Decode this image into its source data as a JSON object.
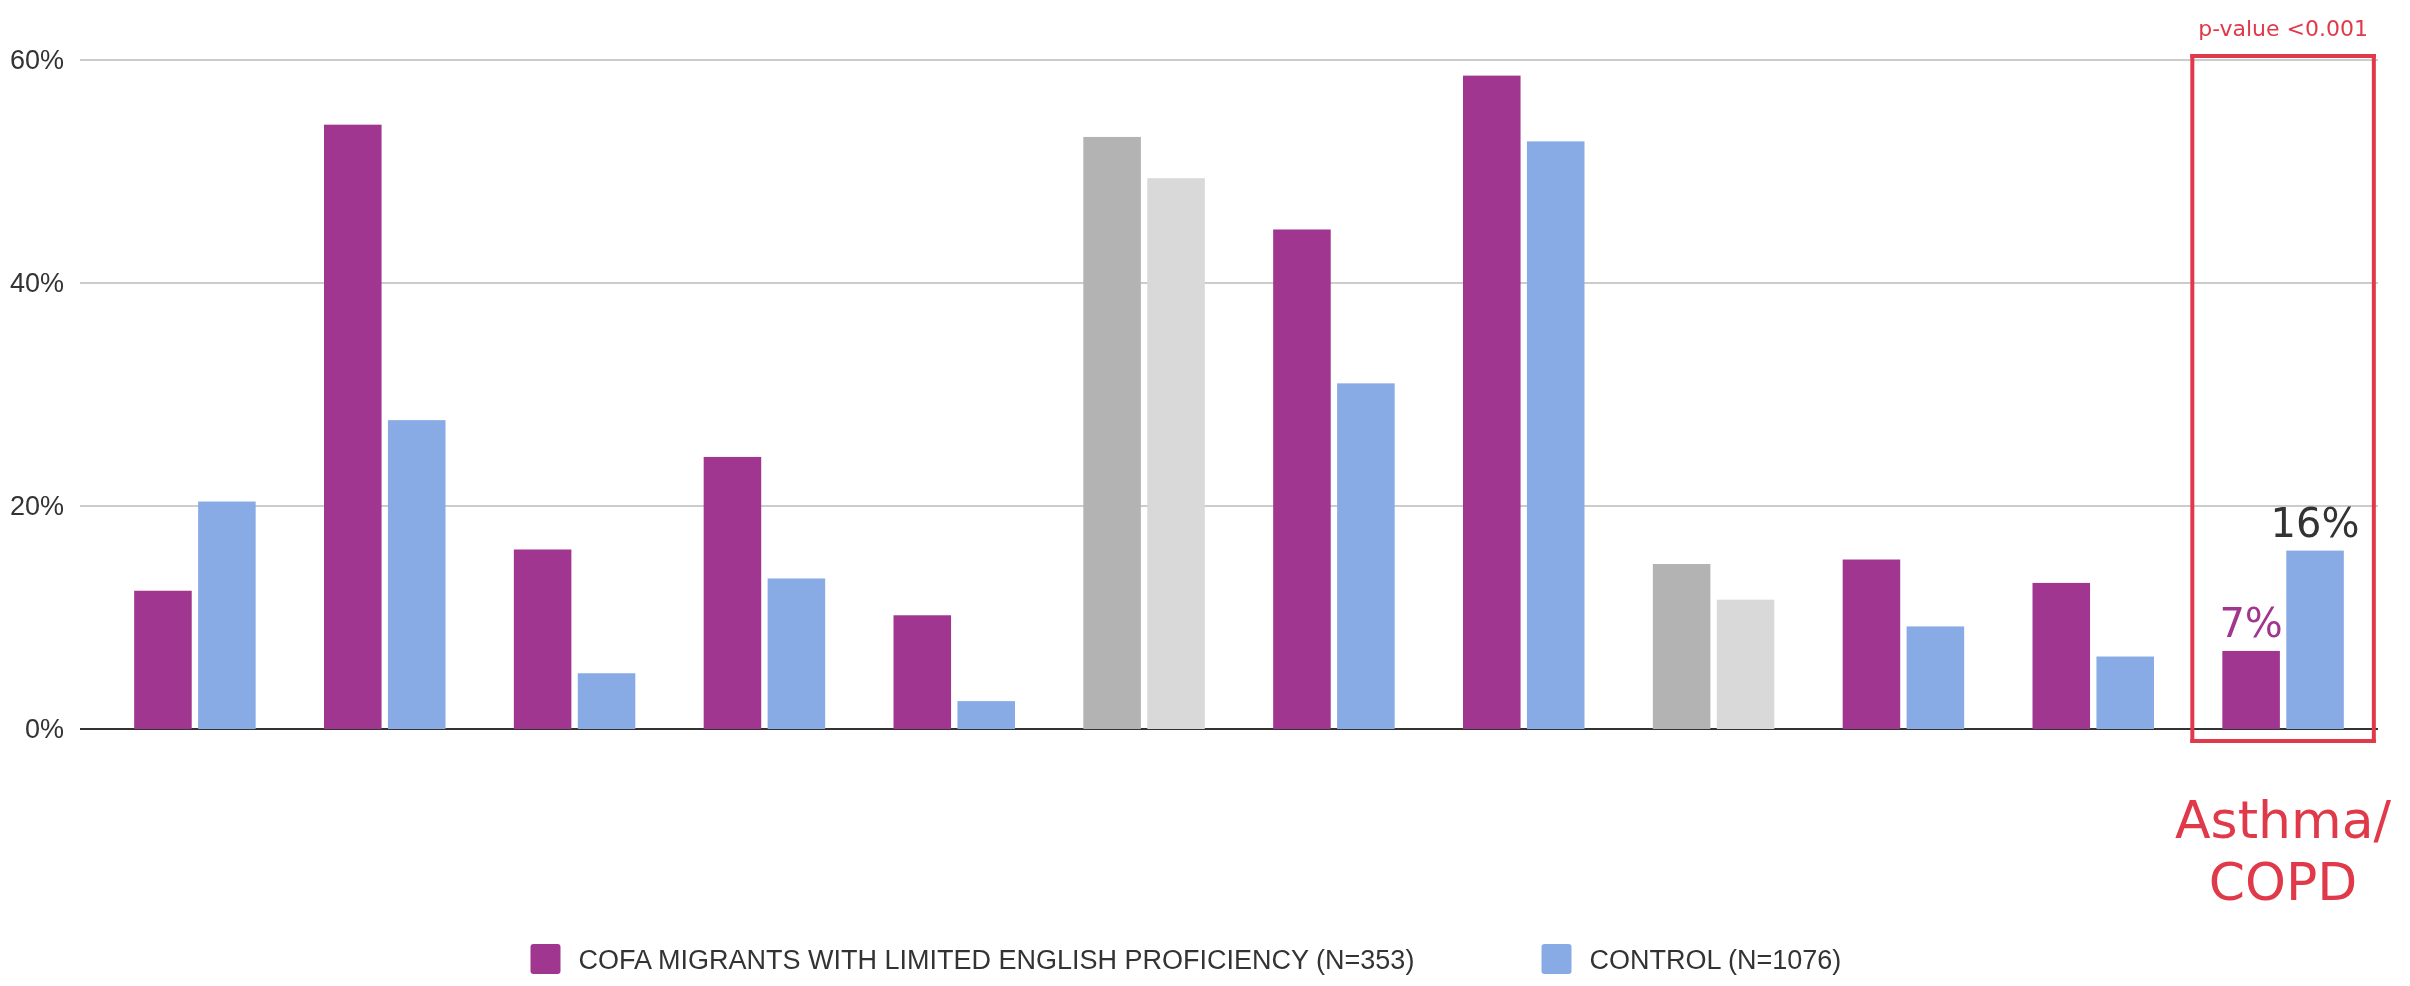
{
  "chart_data": {
    "type": "bar",
    "categories": [
      null,
      null,
      null,
      null,
      null,
      null,
      null,
      null,
      null,
      null,
      null,
      "Asthma/COPD"
    ],
    "series": [
      {
        "name": "COFA MIGRANTS WITH LIMITED ENGLISH PROFICIENCY (N=353)",
        "color": "#a0368f",
        "colors": [
          "#a0368f",
          "#a0368f",
          "#a0368f",
          "#a0368f",
          "#a0368f",
          "#b3b3b3",
          "#a0368f",
          "#a0368f",
          "#b3b3b3",
          "#a0368f",
          "#a0368f",
          "#a0368f"
        ],
        "values": [
          12.4,
          54.2,
          16.1,
          24.4,
          10.2,
          53.1,
          44.8,
          58.6,
          14.8,
          15.2,
          13.1,
          7
        ],
        "value_labels": [
          null,
          null,
          null,
          null,
          null,
          null,
          null,
          null,
          null,
          null,
          null,
          "7%"
        ]
      },
      {
        "name": "CONTROL (N=1076)",
        "color": "#88abe5",
        "colors": [
          "#88abe5",
          "#88abe5",
          "#88abe5",
          "#88abe5",
          "#88abe5",
          "#d9d9d9",
          "#88abe5",
          "#88abe5",
          "#d9d9d9",
          "#88abe5",
          "#88abe5",
          "#88abe5"
        ],
        "values": [
          20.4,
          27.7,
          5.0,
          13.5,
          2.5,
          49.4,
          31.0,
          52.7,
          11.6,
          9.2,
          6.5,
          16
        ],
        "value_labels": [
          null,
          null,
          null,
          null,
          null,
          null,
          null,
          null,
          null,
          null,
          null,
          "16%"
        ]
      }
    ],
    "ylim": [
      0,
      60
    ],
    "yticks": [
      {
        "value": 0,
        "label": "0%"
      },
      {
        "value": 20,
        "label": "20%"
      },
      {
        "value": 40,
        "label": "40%"
      },
      {
        "value": 60,
        "label": "60%"
      }
    ],
    "grid": "y",
    "legend": "bottom",
    "annotations": [
      "p-value <0.001"
    ]
  }
}
